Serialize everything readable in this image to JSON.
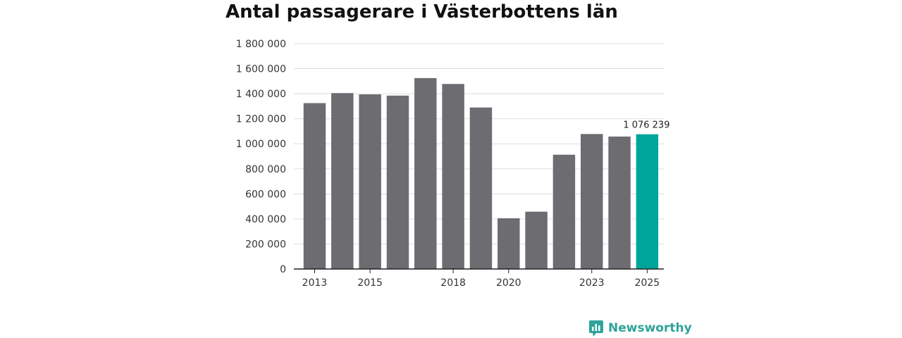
{
  "title": "Antal passagerare i Västerbottens län",
  "brand": {
    "name": "Newsworthy",
    "icon": "newsworthy-logo-icon"
  },
  "colors": {
    "bar": "#6d6c71",
    "highlight": "#00a59a",
    "grid": "#dddddd",
    "axis": "#222222",
    "brand": "#2ea39a"
  },
  "chart_data": {
    "type": "bar",
    "title": "Antal passagerare i Västerbottens län",
    "xlabel": "",
    "ylabel": "",
    "categories": [
      2013,
      2014,
      2015,
      2016,
      2017,
      2018,
      2019,
      2020,
      2021,
      2022,
      2023,
      2024,
      2025
    ],
    "values": [
      1325000,
      1405000,
      1395000,
      1385000,
      1525000,
      1478000,
      1290000,
      405000,
      458000,
      913000,
      1078000,
      1058000,
      1076239
    ],
    "highlight_index": 12,
    "highlight_label": "1 076 239",
    "ylim": [
      0,
      1800000
    ],
    "yticks": [
      0,
      200000,
      400000,
      600000,
      800000,
      1000000,
      1200000,
      1400000,
      1600000,
      1800000
    ],
    "ytick_labels": [
      "0",
      "200 000",
      "400 000",
      "600 000",
      "800 000",
      "1 000 000",
      "1 200 000",
      "1 400 000",
      "1 600 000",
      "1 800 000"
    ],
    "xtick_labels": [
      "2013",
      "2015",
      "2018",
      "2020",
      "2023",
      "2025"
    ],
    "xtick_positions": [
      2013,
      2015,
      2018,
      2020,
      2023,
      2025
    ],
    "grid": true
  }
}
